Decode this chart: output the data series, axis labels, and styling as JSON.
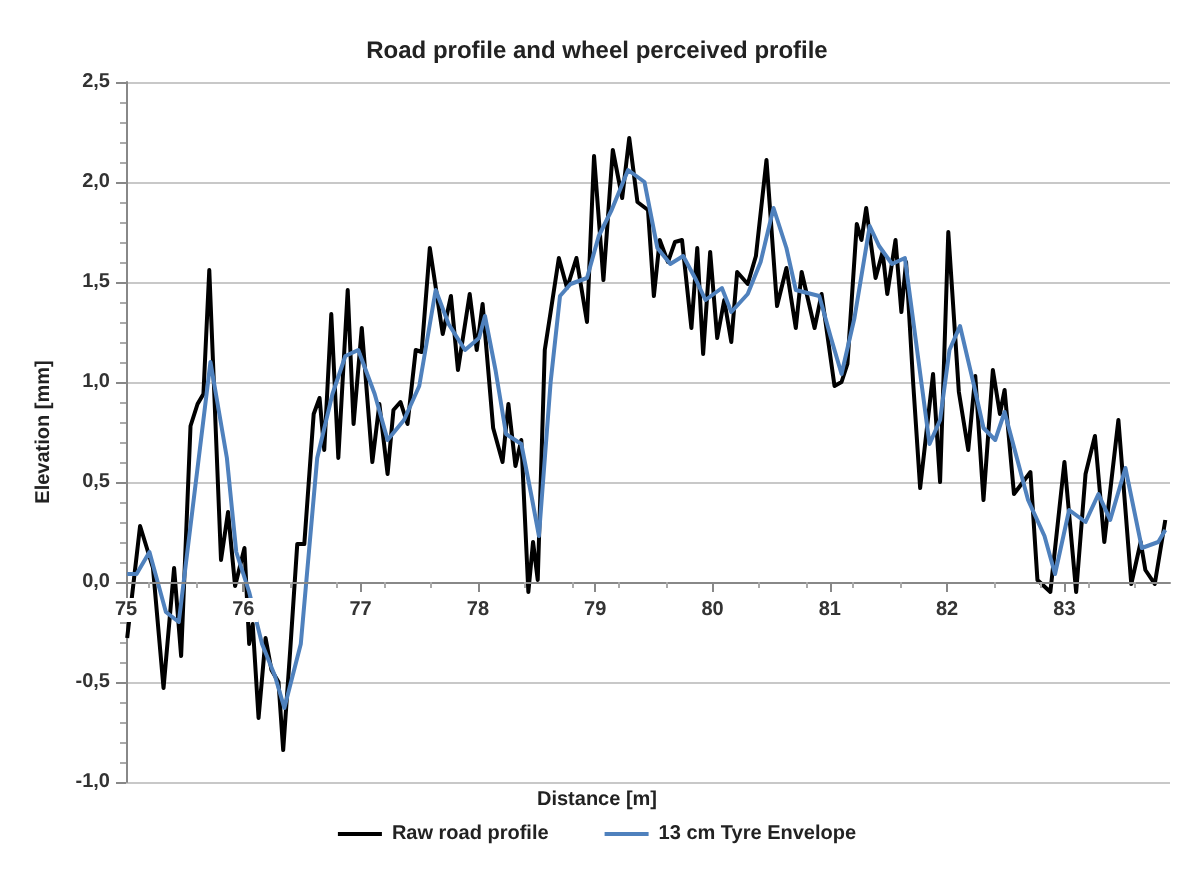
{
  "chart_data": {
    "type": "line",
    "title": "Road profile and wheel perceived profile",
    "xlabel": "Distance [m]",
    "ylabel": "Elevation [mm]",
    "xlim": [
      75,
      83.9
    ],
    "xticks": [
      75,
      76,
      77,
      78,
      79,
      80,
      81,
      82,
      83
    ],
    "ylim": [
      -1,
      2.5
    ],
    "yticks": [
      {
        "value": -1,
        "label": "-1,0"
      },
      {
        "value": -0.5,
        "label": "-0,5"
      },
      {
        "value": 0,
        "label": "0,0"
      },
      {
        "value": 0.5,
        "label": "0,5"
      },
      {
        "value": 1,
        "label": "1,0"
      },
      {
        "value": 1.5,
        "label": "1,5"
      },
      {
        "value": 2,
        "label": "2,0"
      },
      {
        "value": 2.5,
        "label": "2,5"
      }
    ],
    "grid": "y",
    "legend": "bottom",
    "marker": "none",
    "line_style": "solid",
    "series": [
      {
        "name": "Raw road profile",
        "color": "#000000",
        "x": [
          75.01,
          75.12,
          75.23,
          75.32,
          75.41,
          75.47,
          75.55,
          75.61,
          75.66,
          75.71,
          75.81,
          75.87,
          75.93,
          76.01,
          76.05,
          76.08,
          76.13,
          76.19,
          76.24,
          76.3,
          76.34,
          76.4,
          76.46,
          76.52,
          76.6,
          76.65,
          76.69,
          76.75,
          76.81,
          76.89,
          76.94,
          77.01,
          77.1,
          77.16,
          77.23,
          77.28,
          77.34,
          77.4,
          77.47,
          77.52,
          77.59,
          77.7,
          77.77,
          77.83,
          77.93,
          77.99,
          78.04,
          78.13,
          78.21,
          78.26,
          78.32,
          78.37,
          78.43,
          78.47,
          78.51,
          78.57,
          78.62,
          78.69,
          78.76,
          78.84,
          78.93,
          78.99,
          79.07,
          79.15,
          79.23,
          79.29,
          79.36,
          79.45,
          79.5,
          79.55,
          79.62,
          79.68,
          79.74,
          79.82,
          79.87,
          79.92,
          79.98,
          80.04,
          80.1,
          80.16,
          80.21,
          80.3,
          80.37,
          80.46,
          80.55,
          80.63,
          80.71,
          80.76,
          80.87,
          80.93,
          81.04,
          81.1,
          81.15,
          81.23,
          81.27,
          81.31,
          81.39,
          81.45,
          81.49,
          81.56,
          81.61,
          81.65,
          81.71,
          81.77,
          81.88,
          81.94,
          82.01,
          82.1,
          82.18,
          82.24,
          82.31,
          82.39,
          82.45,
          82.49,
          82.57,
          82.71,
          82.77,
          82.88,
          83.0,
          83.1,
          83.18,
          83.26,
          83.34,
          83.46,
          83.57,
          83.65,
          83.69,
          83.77,
          83.86
        ],
        "values": [
          -0.28,
          0.28,
          0.07,
          -0.53,
          0.07,
          -0.37,
          0.78,
          0.89,
          0.94,
          1.56,
          0.11,
          0.35,
          -0.02,
          0.17,
          -0.31,
          -0.21,
          -0.68,
          -0.28,
          -0.44,
          -0.5,
          -0.84,
          -0.34,
          0.19,
          0.19,
          0.84,
          0.92,
          0.66,
          1.34,
          0.62,
          1.46,
          0.79,
          1.27,
          0.6,
          0.89,
          0.54,
          0.86,
          0.9,
          0.79,
          1.16,
          1.15,
          1.67,
          1.24,
          1.43,
          1.06,
          1.44,
          1.16,
          1.39,
          0.77,
          0.6,
          0.89,
          0.58,
          0.71,
          -0.05,
          0.2,
          0.01,
          1.16,
          1.35,
          1.62,
          1.47,
          1.62,
          1.3,
          2.13,
          1.51,
          2.16,
          1.92,
          2.22,
          1.9,
          1.86,
          1.43,
          1.71,
          1.6,
          1.7,
          1.71,
          1.27,
          1.67,
          1.14,
          1.65,
          1.22,
          1.41,
          1.2,
          1.55,
          1.49,
          1.63,
          2.11,
          1.38,
          1.57,
          1.27,
          1.55,
          1.27,
          1.44,
          0.98,
          1.0,
          1.09,
          1.79,
          1.71,
          1.87,
          1.52,
          1.65,
          1.44,
          1.71,
          1.35,
          1.6,
          1.0,
          0.47,
          1.04,
          0.5,
          1.75,
          0.95,
          0.66,
          1.03,
          0.41,
          1.06,
          0.84,
          0.96,
          0.44,
          0.55,
          0.01,
          -0.05,
          0.6,
          -0.05,
          0.54,
          0.73,
          0.2,
          0.81,
          -0.01,
          0.2,
          0.06,
          -0.01,
          0.31
        ]
      },
      {
        "name": "13 cm Tyre Envelope",
        "color": "#4f81bd",
        "x": [
          75.01,
          75.09,
          75.2,
          75.34,
          75.45,
          75.72,
          75.86,
          75.94,
          76.05,
          76.16,
          76.27,
          76.35,
          76.49,
          76.63,
          76.76,
          76.87,
          76.98,
          77.12,
          77.23,
          77.37,
          77.5,
          77.64,
          77.75,
          77.89,
          78.01,
          78.06,
          78.15,
          78.24,
          78.37,
          78.46,
          78.52,
          78.62,
          78.7,
          78.79,
          78.93,
          79.03,
          79.14,
          79.28,
          79.42,
          79.53,
          79.64,
          79.75,
          79.86,
          79.94,
          80.08,
          80.16,
          80.3,
          80.41,
          80.52,
          80.63,
          80.71,
          80.91,
          81.01,
          81.1,
          81.21,
          81.34,
          81.42,
          81.53,
          81.64,
          81.85,
          81.94,
          82.02,
          82.11,
          82.23,
          82.31,
          82.41,
          82.49,
          82.69,
          82.83,
          82.92,
          83.04,
          83.18,
          83.29,
          83.39,
          83.52,
          83.66,
          83.8,
          83.86
        ],
        "values": [
          0.04,
          0.04,
          0.15,
          -0.15,
          -0.2,
          1.1,
          0.62,
          0.15,
          -0.05,
          -0.31,
          -0.47,
          -0.63,
          -0.31,
          0.62,
          0.94,
          1.13,
          1.16,
          0.94,
          0.71,
          0.81,
          0.98,
          1.46,
          1.29,
          1.16,
          1.22,
          1.33,
          1.06,
          0.74,
          0.69,
          0.42,
          0.23,
          1.0,
          1.43,
          1.49,
          1.52,
          1.73,
          1.86,
          2.06,
          2.0,
          1.67,
          1.59,
          1.63,
          1.51,
          1.41,
          1.47,
          1.35,
          1.44,
          1.6,
          1.87,
          1.67,
          1.46,
          1.43,
          1.22,
          1.04,
          1.32,
          1.78,
          1.68,
          1.59,
          1.62,
          0.69,
          0.81,
          1.16,
          1.28,
          0.98,
          0.77,
          0.71,
          0.85,
          0.41,
          0.23,
          0.04,
          0.36,
          0.3,
          0.44,
          0.31,
          0.57,
          0.17,
          0.2,
          0.26
        ]
      }
    ]
  }
}
